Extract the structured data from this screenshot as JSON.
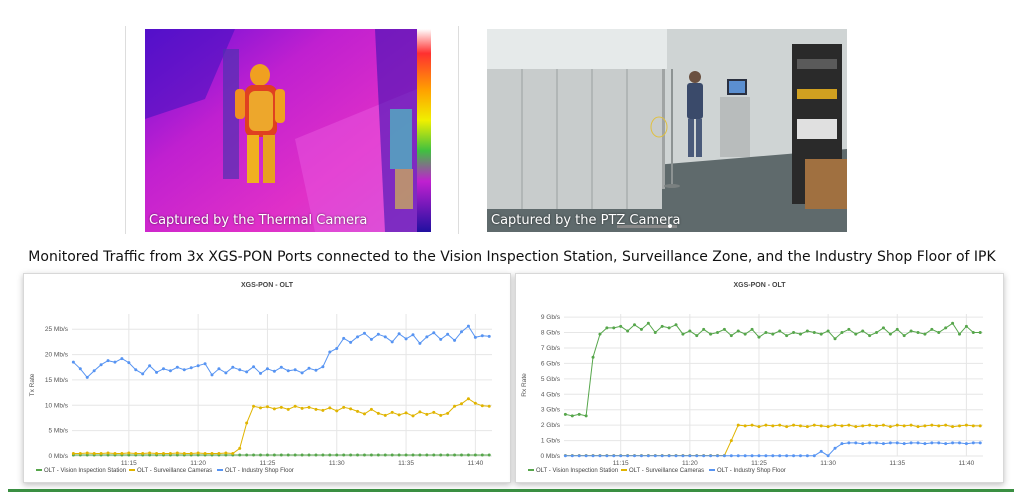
{
  "cameras": {
    "thermal_caption": "Captured by the Thermal Camera",
    "ptz_caption": "Captured by the PTZ Camera"
  },
  "headline": "Monitored Traffic from 3x XGS-PON Ports connected to the Vision Inspection Station, Surveillance Zone, and the Industry Shop Floor of IPK",
  "colors": {
    "vision": "#56a64b",
    "surveillance": "#e0b400",
    "shopfloor": "#5794f2",
    "grid": "#e6e6e6",
    "footer": "#3a8f42"
  },
  "chart_data": [
    {
      "type": "line",
      "title": "XGS-PON - OLT",
      "ylabel": "Tx Rate",
      "xlabel": "",
      "x_tick_labels": [
        "11:15",
        "11:20",
        "11:25",
        "11:30",
        "11:35",
        "11:40"
      ],
      "x_tick_minutes": [
        15,
        20,
        25,
        30,
        35,
        40
      ],
      "xlim_minutes": [
        10.9,
        41.2
      ],
      "y_tick_labels": [
        "0 Mb/s",
        "5 Mb/s",
        "10 Mb/s",
        "15 Mb/s",
        "20 Mb/s",
        "25 Mb/s"
      ],
      "y_ticks": [
        0,
        5,
        10,
        15,
        20,
        25
      ],
      "ylim": [
        0,
        28
      ],
      "grid": true,
      "legend": "bottom",
      "x_minutes": [
        11.0,
        11.5,
        12.0,
        12.5,
        13.0,
        13.5,
        14.0,
        14.5,
        15.0,
        15.5,
        16.0,
        16.5,
        17.0,
        17.5,
        18.0,
        18.5,
        19.0,
        19.5,
        20.0,
        20.5,
        21.0,
        21.5,
        22.0,
        22.5,
        23.0,
        23.5,
        24.0,
        24.5,
        25.0,
        25.5,
        26.0,
        26.5,
        27.0,
        27.5,
        28.0,
        28.5,
        29.0,
        29.5,
        30.0,
        30.5,
        31.0,
        31.5,
        32.0,
        32.5,
        33.0,
        33.5,
        34.0,
        34.5,
        35.0,
        35.5,
        36.0,
        36.5,
        37.0,
        37.5,
        38.0,
        38.5,
        39.0,
        39.5,
        40.0,
        40.5,
        41.0
      ],
      "series": [
        {
          "name": "OLT - Vision Inspection Station",
          "color_key": "vision",
          "values": [
            0.2,
            0.2,
            0.2,
            0.2,
            0.2,
            0.2,
            0.2,
            0.2,
            0.2,
            0.2,
            0.2,
            0.2,
            0.2,
            0.2,
            0.2,
            0.2,
            0.2,
            0.2,
            0.2,
            0.2,
            0.2,
            0.2,
            0.2,
            0.2,
            0.2,
            0.2,
            0.2,
            0.2,
            0.2,
            0.2,
            0.2,
            0.2,
            0.2,
            0.2,
            0.2,
            0.2,
            0.2,
            0.2,
            0.2,
            0.2,
            0.2,
            0.2,
            0.2,
            0.2,
            0.2,
            0.2,
            0.2,
            0.2,
            0.2,
            0.2,
            0.2,
            0.2,
            0.2,
            0.2,
            0.2,
            0.2,
            0.2,
            0.2,
            0.2,
            0.2,
            0.2
          ]
        },
        {
          "name": "OLT - Surveillance Cameras",
          "color_key": "surveillance",
          "values": [
            0.5,
            0.5,
            0.6,
            0.5,
            0.5,
            0.6,
            0.5,
            0.5,
            0.6,
            0.5,
            0.5,
            0.6,
            0.5,
            0.5,
            0.5,
            0.6,
            0.5,
            0.5,
            0.6,
            0.5,
            0.5,
            0.5,
            0.6,
            0.5,
            1.5,
            6.5,
            9.8,
            9.5,
            9.7,
            9.3,
            9.6,
            9.2,
            9.8,
            9.4,
            9.6,
            9.2,
            9.0,
            9.5,
            8.9,
            9.6,
            9.3,
            8.8,
            8.3,
            9.2,
            8.4,
            8.0,
            8.6,
            8.1,
            8.5,
            7.9,
            8.7,
            8.2,
            8.6,
            8.0,
            8.4,
            9.8,
            10.3,
            11.3,
            10.4,
            9.9,
            9.8
          ]
        },
        {
          "name": "OLT - Industry Shop Floor",
          "color_key": "shopfloor",
          "values": [
            18.5,
            17.2,
            15.5,
            16.8,
            18.0,
            18.8,
            18.5,
            19.2,
            18.4,
            17.0,
            16.2,
            17.8,
            16.5,
            17.2,
            16.8,
            17.5,
            17.0,
            17.4,
            17.8,
            18.2,
            16.0,
            17.2,
            16.4,
            17.5,
            17.0,
            16.6,
            17.6,
            16.3,
            17.2,
            16.7,
            17.5,
            16.8,
            17.0,
            16.4,
            17.3,
            16.9,
            17.6,
            20.5,
            21.2,
            23.2,
            22.4,
            23.5,
            24.2,
            23.0,
            24.0,
            23.5,
            22.5,
            24.1,
            23.1,
            23.9,
            22.2,
            23.5,
            24.3,
            23.0,
            24.0,
            22.8,
            24.5,
            25.6,
            23.4,
            23.7,
            23.6
          ]
        }
      ]
    },
    {
      "type": "line",
      "title": "XGS-PON - OLT",
      "ylabel": "Rx Rate",
      "xlabel": "",
      "x_tick_labels": [
        "11:15",
        "11:20",
        "11:25",
        "11:30",
        "11:35",
        "11:40"
      ],
      "x_tick_minutes": [
        15,
        20,
        25,
        30,
        35,
        40
      ],
      "xlim_minutes": [
        10.9,
        41.2
      ],
      "y_tick_labels": [
        "0 Mb/s",
        "1 Gb/s",
        "2 Gb/s",
        "3 Gb/s",
        "4 Gb/s",
        "5 Gb/s",
        "6 Gb/s",
        "7 Gb/s",
        "8 Gb/s",
        "9 Gb/s"
      ],
      "y_ticks": [
        0,
        1,
        2,
        3,
        4,
        5,
        6,
        7,
        8,
        9
      ],
      "ylim": [
        0,
        9.2
      ],
      "grid": true,
      "legend": "bottom",
      "x_minutes": [
        11.0,
        11.5,
        12.0,
        12.5,
        13.0,
        13.5,
        14.0,
        14.5,
        15.0,
        15.5,
        16.0,
        16.5,
        17.0,
        17.5,
        18.0,
        18.5,
        19.0,
        19.5,
        20.0,
        20.5,
        21.0,
        21.5,
        22.0,
        22.5,
        23.0,
        23.5,
        24.0,
        24.5,
        25.0,
        25.5,
        26.0,
        26.5,
        27.0,
        27.5,
        28.0,
        28.5,
        29.0,
        29.5,
        30.0,
        30.5,
        31.0,
        31.5,
        32.0,
        32.5,
        33.0,
        33.5,
        34.0,
        34.5,
        35.0,
        35.5,
        36.0,
        36.5,
        37.0,
        37.5,
        38.0,
        38.5,
        39.0,
        39.5,
        40.0,
        40.5,
        41.0
      ],
      "series": [
        {
          "name": "OLT - Vision Inspection Station",
          "color_key": "vision",
          "values": [
            2.7,
            2.6,
            2.7,
            2.6,
            6.4,
            7.9,
            8.3,
            8.3,
            8.4,
            8.1,
            8.5,
            8.2,
            8.6,
            8.0,
            8.4,
            8.3,
            8.5,
            7.9,
            8.1,
            7.8,
            8.2,
            7.9,
            8.0,
            8.2,
            7.8,
            8.1,
            7.9,
            8.2,
            7.7,
            8.0,
            7.9,
            8.1,
            7.8,
            8.0,
            7.9,
            8.1,
            8.0,
            7.9,
            8.1,
            7.6,
            8.0,
            8.2,
            7.9,
            8.1,
            7.8,
            8.0,
            8.3,
            7.9,
            8.2,
            7.8,
            8.1,
            8.0,
            7.9,
            8.2,
            8.0,
            8.3,
            8.6,
            7.9,
            8.4,
            8.0,
            8.0
          ]
        },
        {
          "name": "OLT - Surveillance Cameras",
          "color_key": "surveillance",
          "values": [
            0.03,
            0.03,
            0.03,
            0.03,
            0.03,
            0.03,
            0.03,
            0.03,
            0.03,
            0.03,
            0.03,
            0.03,
            0.03,
            0.03,
            0.03,
            0.03,
            0.03,
            0.03,
            0.03,
            0.03,
            0.03,
            0.03,
            0.03,
            0.03,
            1.0,
            2.0,
            1.95,
            2.0,
            1.9,
            2.0,
            1.95,
            2.0,
            1.9,
            2.0,
            1.95,
            1.9,
            2.0,
            1.95,
            1.9,
            2.0,
            1.95,
            2.0,
            1.9,
            1.95,
            2.0,
            1.95,
            2.0,
            1.9,
            2.0,
            1.95,
            2.0,
            1.9,
            1.95,
            2.0,
            1.95,
            2.0,
            1.9,
            1.95,
            2.0,
            1.95,
            1.95
          ]
        },
        {
          "name": "OLT - Industry Shop Floor",
          "color_key": "shopfloor",
          "values": [
            0.02,
            0.02,
            0.02,
            0.02,
            0.02,
            0.02,
            0.02,
            0.02,
            0.02,
            0.02,
            0.02,
            0.02,
            0.02,
            0.02,
            0.02,
            0.02,
            0.02,
            0.02,
            0.02,
            0.02,
            0.02,
            0.02,
            0.02,
            0.02,
            0.02,
            0.02,
            0.02,
            0.02,
            0.02,
            0.02,
            0.02,
            0.02,
            0.02,
            0.02,
            0.02,
            0.02,
            0.02,
            0.3,
            0.02,
            0.5,
            0.8,
            0.85,
            0.85,
            0.8,
            0.85,
            0.85,
            0.8,
            0.85,
            0.85,
            0.8,
            0.85,
            0.85,
            0.8,
            0.85,
            0.85,
            0.8,
            0.85,
            0.85,
            0.8,
            0.85,
            0.85
          ]
        }
      ]
    }
  ]
}
